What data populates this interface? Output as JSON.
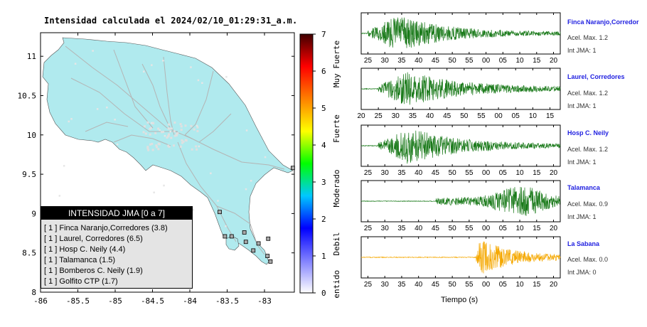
{
  "map": {
    "title": "Intensidad calculada el 2024/02/10_01:29:31_a.m.",
    "x_ticks": [
      -86,
      -85.5,
      -85,
      -84.5,
      -84,
      -83.5,
      -83
    ],
    "x_tick_labels": [
      "-86",
      "-85.5",
      "-85",
      "-84.5",
      "-84",
      "-83.5",
      "-83"
    ],
    "y_ticks": [
      8,
      8.5,
      9,
      9.5,
      10,
      10.5,
      11
    ],
    "y_tick_labels": [
      "8",
      "8.5",
      "9",
      "9.5",
      "10",
      "10.5",
      "11"
    ],
    "xlim": [
      -86,
      -82.6
    ],
    "ylim": [
      8,
      11.3
    ],
    "land_color": "#b0eaee",
    "road_color": "#b4b4b4",
    "stations": [
      {
        "lon": -82.62,
        "lat": 9.58
      },
      {
        "lon": -82.95,
        "lat": 8.68
      },
      {
        "lon": -83.08,
        "lat": 8.62
      },
      {
        "lon": -83.15,
        "lat": 8.53
      },
      {
        "lon": -83.27,
        "lat": 8.76
      },
      {
        "lon": -83.44,
        "lat": 8.71
      },
      {
        "lon": -82.96,
        "lat": 8.46
      },
      {
        "lon": -82.92,
        "lat": 8.39
      },
      {
        "lon": -83.53,
        "lat": 8.71
      },
      {
        "lon": -83.25,
        "lat": 8.64
      },
      {
        "lon": -83.6,
        "lat": 9.02
      }
    ]
  },
  "legend": {
    "title": "INTENSIDAD JMA [0 a 7]",
    "items": [
      "[ 1 ]  Finca Naranjo,Corredores (3.8)",
      "[ 1 ]  Laurel, Corredores (6.5)",
      "[ 1 ]  Hosp C. Neily (4.4)",
      "[ 1 ]  Talamanca (1.5)",
      "[ 1 ]  Bomberos C. Neily (1.9)",
      "[ 1 ]  Golfito CTP (1.7)"
    ]
  },
  "colorbar": {
    "ticks": [
      "0",
      "1",
      "2",
      "3",
      "4",
      "5",
      "6",
      "7"
    ],
    "labels": [
      "No sentido",
      "Debil",
      "Moderado",
      "Fuerte",
      "Muy Fuerte"
    ],
    "colors": [
      "#ffffff",
      "#8080ff",
      "#0000ff",
      "#00c8ff",
      "#00ff00",
      "#ffff00",
      "#ff8000",
      "#ff0000",
      "#400000"
    ]
  },
  "chart_data": {
    "type": "line",
    "xlabel": "Tiempo (s)",
    "panels": [
      {
        "name": "Finca Naranjo,Corredor",
        "acel": "Acel. Max. 1.2",
        "int": "Int JMA: 1",
        "color": "#1a7a1a",
        "tick_labels": [
          "25",
          "30",
          "35",
          "40",
          "45",
          "50",
          "55",
          "00",
          "05",
          "10",
          "15",
          "20"
        ],
        "first_tick": 25,
        "xlim": [
          23,
          82
        ],
        "onset": 25,
        "peak": 34,
        "amp": 1.0,
        "decay": 14
      },
      {
        "name": "Laurel, Corredores",
        "acel": "Acel. Max. 1.2",
        "int": "Int JMA: 1",
        "color": "#1a7a1a",
        "tick_labels": [
          "20",
          "25",
          "30",
          "35",
          "40",
          "45",
          "50",
          "55",
          "00",
          "05",
          "10",
          "15"
        ],
        "first_tick": 20,
        "xlim": [
          20,
          78
        ],
        "onset": 25,
        "peak": 33,
        "amp": 1.0,
        "decay": 16
      },
      {
        "name": "Hosp C. Neily",
        "acel": "Acel. Max. 1.2",
        "int": "Int JMA: 1",
        "color": "#1a7a1a",
        "tick_labels": [
          "25",
          "30",
          "35",
          "40",
          "45",
          "50",
          "55",
          "00",
          "05",
          "10",
          "15",
          "20"
        ],
        "first_tick": 25,
        "xlim": [
          23,
          82
        ],
        "onset": 28,
        "peak": 37,
        "amp": 1.0,
        "decay": 15
      },
      {
        "name": "Talamanca",
        "acel": "Acel. Max. 0.9",
        "int": "Int JMA: 1",
        "color": "#1a7a1a",
        "tick_labels": [
          "25",
          "30",
          "35",
          "40",
          "45",
          "50",
          "55",
          "00",
          "05",
          "10",
          "15",
          "20"
        ],
        "first_tick": 25,
        "xlim": [
          23,
          82
        ],
        "onset": 45,
        "peak": 70,
        "amp": 0.85,
        "decay": 8
      },
      {
        "name": "La Sabana",
        "acel": "Acel. Max. 0.0",
        "int": "Int JMA: 0",
        "color": "#f5a800",
        "tick_labels": [
          "25",
          "30",
          "35",
          "40",
          "45",
          "50",
          "55",
          "00",
          "05",
          "10",
          "15",
          "20"
        ],
        "first_tick": 25,
        "xlim": [
          23,
          82
        ],
        "onset": 57,
        "peak": 58,
        "amp": 1.0,
        "decay": 10
      }
    ]
  }
}
